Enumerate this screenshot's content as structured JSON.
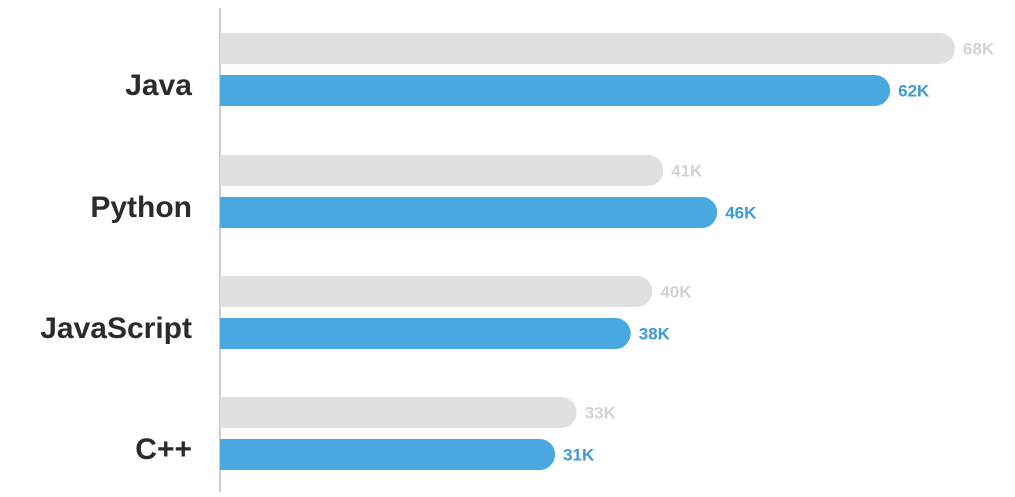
{
  "chart_data": {
    "type": "bar",
    "orientation": "horizontal",
    "categories": [
      "Java",
      "Python",
      "JavaScript",
      "C++"
    ],
    "series": [
      {
        "values": [
          68,
          41,
          40,
          33
        ],
        "labels": [
          "68K",
          "41K",
          "40K",
          "33K"
        ],
        "color": "#e0e0e0",
        "label_color": "#d3d3d3"
      },
      {
        "values": [
          62,
          46,
          38,
          31
        ],
        "labels": [
          "62K",
          "46K",
          "38K",
          "31K"
        ],
        "color": "#4aa8e0",
        "label_color": "#3d9ad6"
      }
    ],
    "xlim": [
      0,
      68
    ],
    "grid": false,
    "legend": "none",
    "axis_color": "#cccccc",
    "category_label_color": "#2b2b2b"
  }
}
